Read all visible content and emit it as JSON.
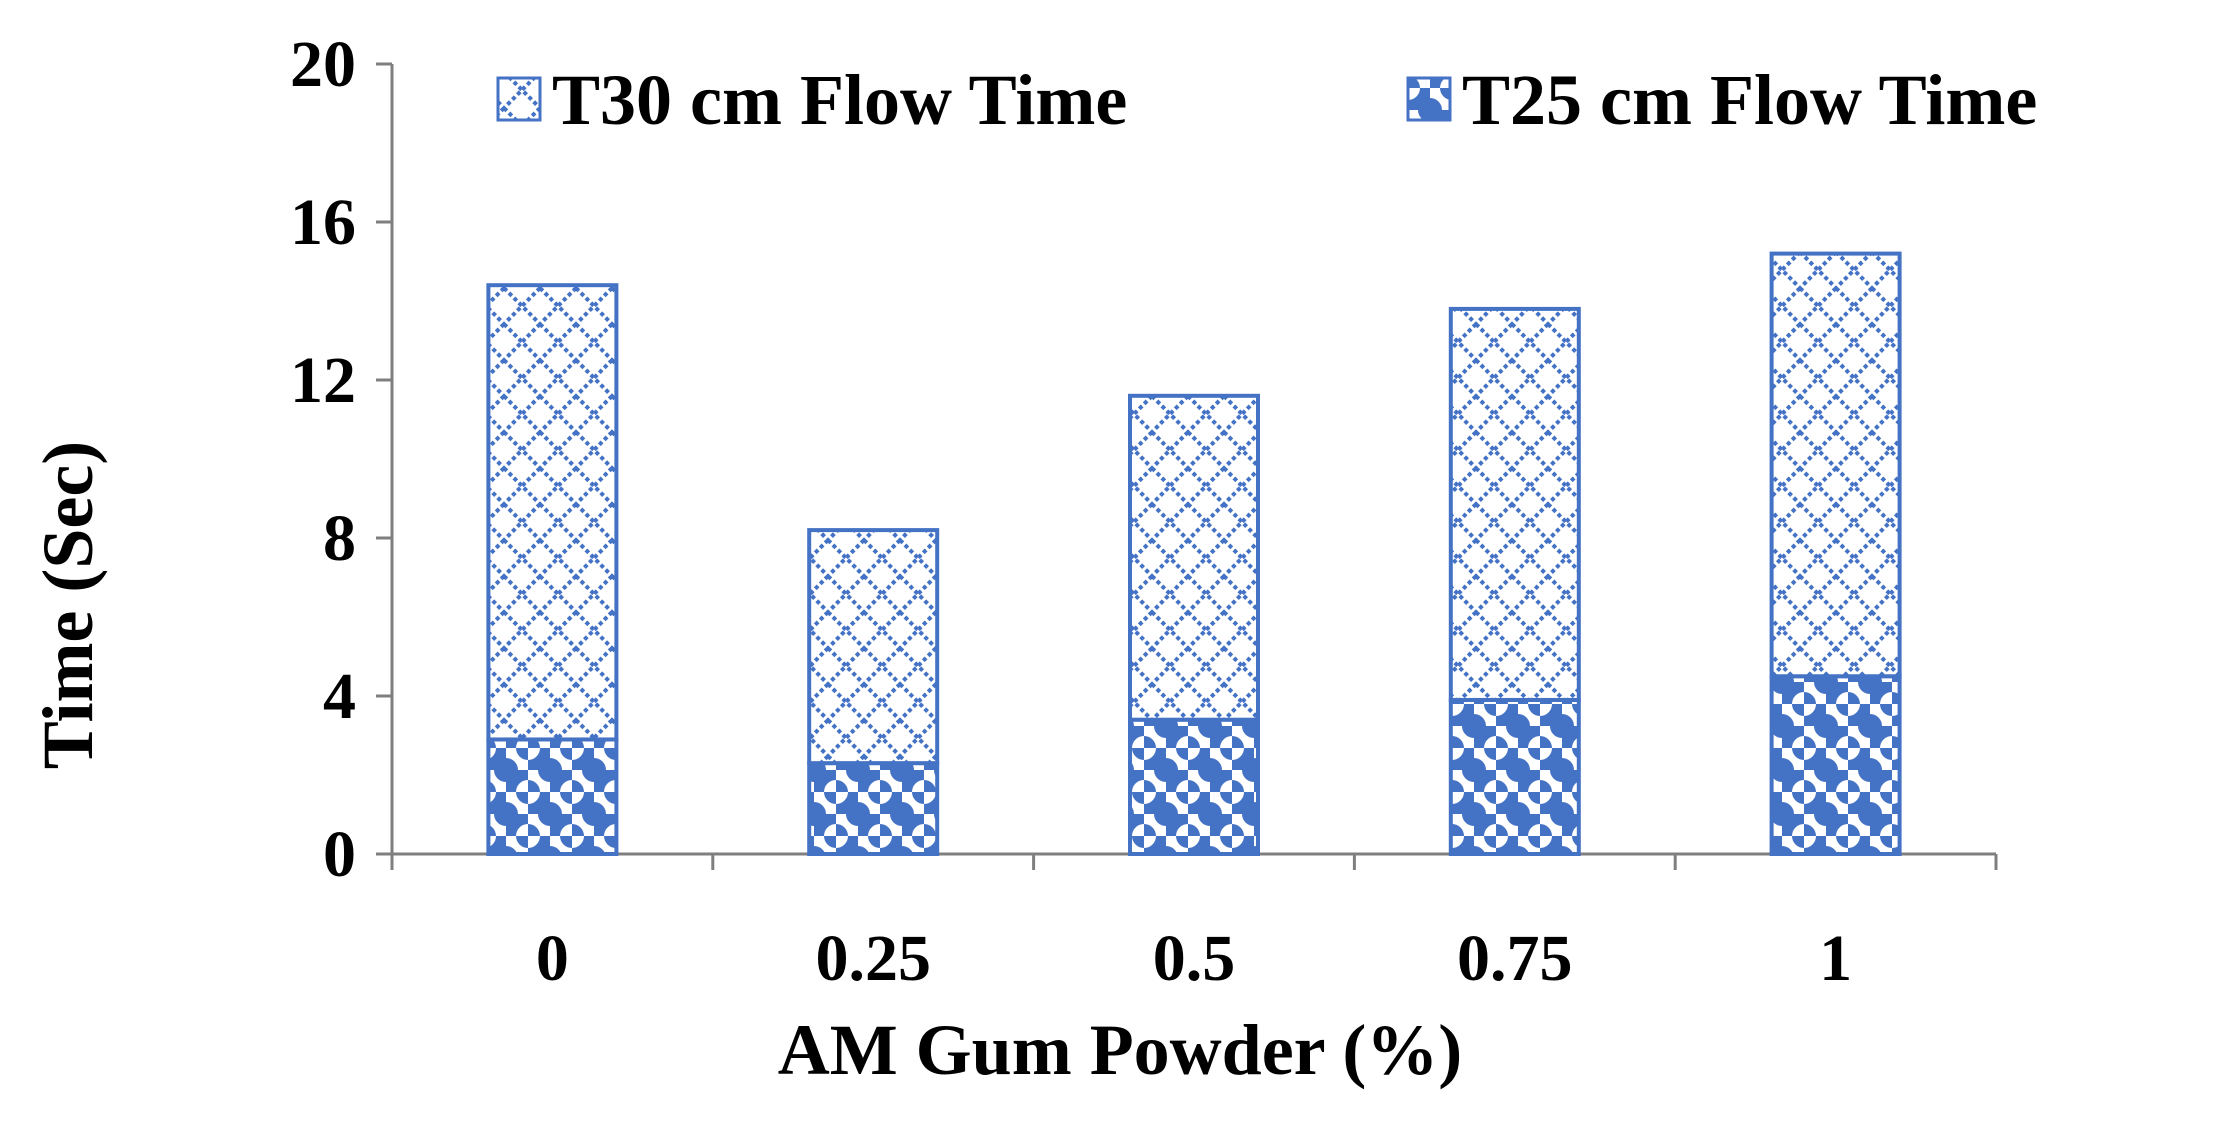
{
  "chart_data": {
    "type": "bar",
    "stacked": true,
    "categories": [
      "0",
      "0.25",
      "0.5",
      "0.75",
      "1"
    ],
    "series": [
      {
        "name": "T25 cm Flow Time",
        "values": [
          2.9,
          2.3,
          3.4,
          3.9,
          4.5
        ],
        "pattern": "circle-check"
      },
      {
        "name": "T30 cm Flow Time",
        "values": [
          11.5,
          5.9,
          8.2,
          9.9,
          10.7
        ],
        "pattern": "diamond-lattice"
      }
    ],
    "legend_order": [
      1,
      0
    ],
    "title": "",
    "xlabel": "AM Gum Powder (%)",
    "ylabel": "Time (Sec)",
    "ylim": [
      0,
      20
    ],
    "yticks": [
      "0",
      "4",
      "8",
      "12",
      "16",
      "20"
    ],
    "grid": false,
    "legend_position": "top",
    "colors": {
      "bar": "#4472C4",
      "axis": "#7f7f7f",
      "background": "#ffffff"
    }
  }
}
